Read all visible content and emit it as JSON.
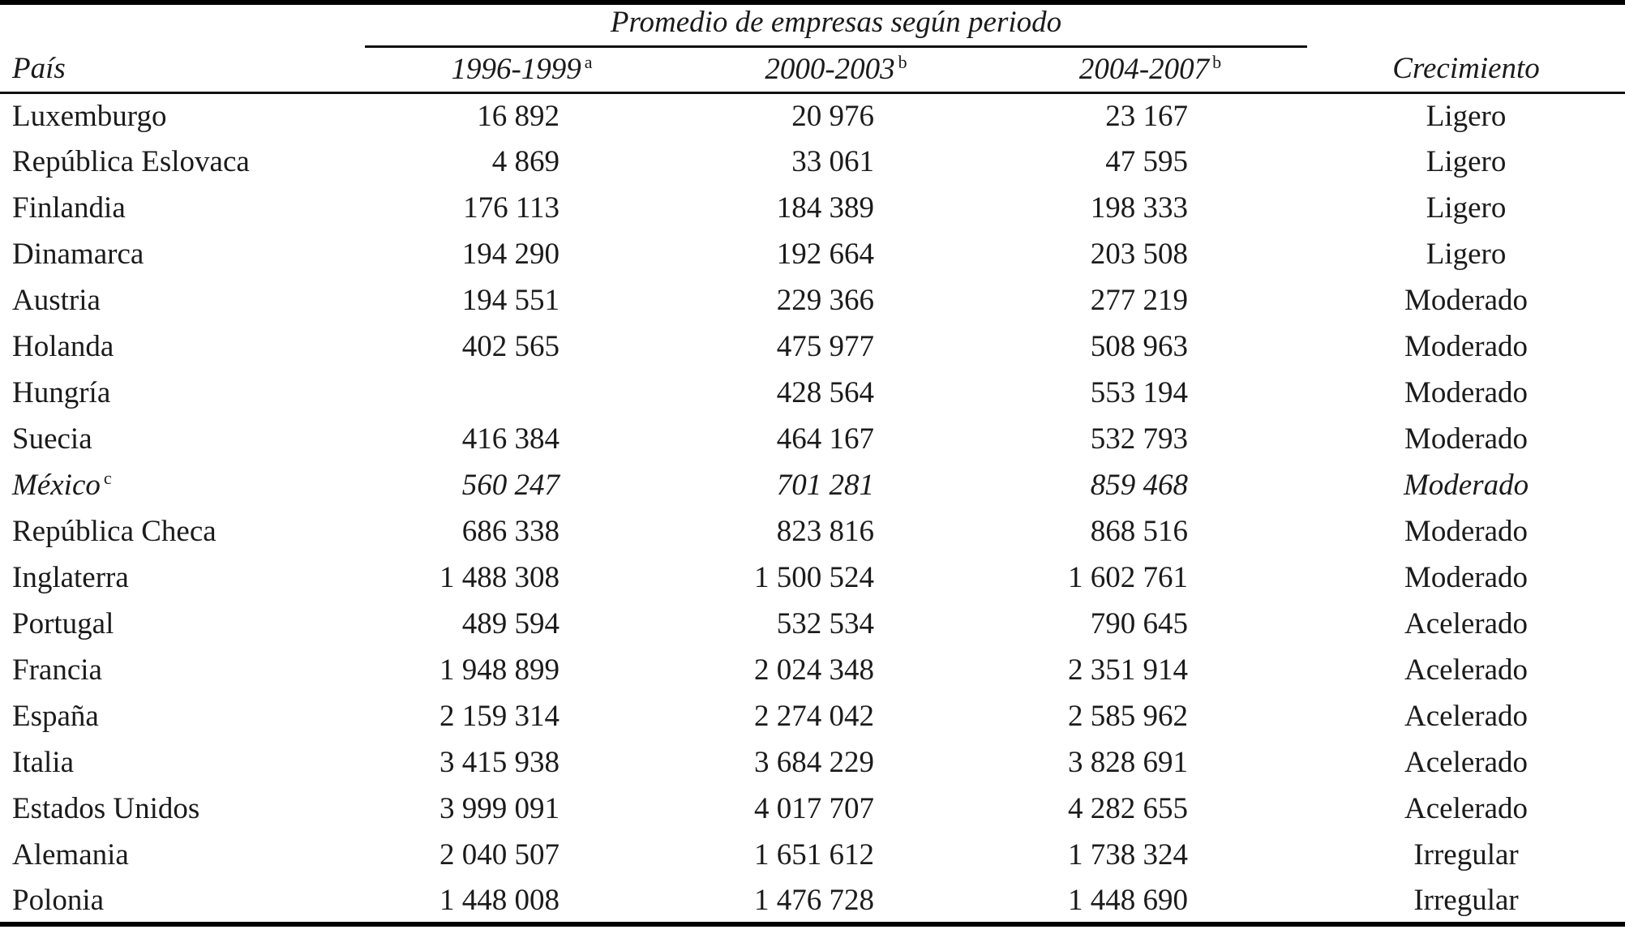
{
  "table": {
    "spanner": "Promedio de empresas según periodo",
    "headers": {
      "country": "País",
      "growth": "Crecimiento"
    },
    "periods": [
      {
        "label": "1996-1999",
        "note": "a"
      },
      {
        "label": "2000-2003",
        "note": "b"
      },
      {
        "label": "2004-2007",
        "note": "b"
      }
    ],
    "rows": [
      {
        "country": "Luxemburgo",
        "note": "",
        "p1": "16 892",
        "p2": "20 976",
        "p3": "23 167",
        "growth": "Ligero",
        "italic": false
      },
      {
        "country": "República Eslovaca",
        "note": "",
        "p1": "4 869",
        "p2": "33 061",
        "p3": "47 595",
        "growth": "Ligero",
        "italic": false
      },
      {
        "country": "Finlandia",
        "note": "",
        "p1": "176 113",
        "p2": "184 389",
        "p3": "198 333",
        "growth": "Ligero",
        "italic": false
      },
      {
        "country": "Dinamarca",
        "note": "",
        "p1": "194 290",
        "p2": "192 664",
        "p3": "203 508",
        "growth": "Ligero",
        "italic": false
      },
      {
        "country": "Austria",
        "note": "",
        "p1": "194 551",
        "p2": "229 366",
        "p3": "277 219",
        "growth": "Moderado",
        "italic": false
      },
      {
        "country": "Holanda",
        "note": "",
        "p1": "402 565",
        "p2": "475 977",
        "p3": "508 963",
        "growth": "Moderado",
        "italic": false
      },
      {
        "country": "Hungría",
        "note": "",
        "p1": "",
        "p2": "428 564",
        "p3": "553 194",
        "growth": "Moderado",
        "italic": false
      },
      {
        "country": "Suecia",
        "note": "",
        "p1": "416 384",
        "p2": "464 167",
        "p3": "532 793",
        "growth": "Moderado",
        "italic": false
      },
      {
        "country": "México",
        "note": "c",
        "p1": "560 247",
        "p2": "701 281",
        "p3": "859 468",
        "growth": "Moderado",
        "italic": true
      },
      {
        "country": "República Checa",
        "note": "",
        "p1": "686 338",
        "p2": "823 816",
        "p3": "868 516",
        "growth": "Moderado",
        "italic": false
      },
      {
        "country": "Inglaterra",
        "note": "",
        "p1": "1 488 308",
        "p2": "1 500 524",
        "p3": "1 602 761",
        "growth": "Moderado",
        "italic": false
      },
      {
        "country": "Portugal",
        "note": "",
        "p1": "489 594",
        "p2": "532 534",
        "p3": "790 645",
        "growth": "Acelerado",
        "italic": false
      },
      {
        "country": "Francia",
        "note": "",
        "p1": "1 948 899",
        "p2": "2 024 348",
        "p3": "2 351 914",
        "growth": "Acelerado",
        "italic": false
      },
      {
        "country": "España",
        "note": "",
        "p1": "2 159 314",
        "p2": "2 274 042",
        "p3": "2 585 962",
        "growth": "Acelerado",
        "italic": false
      },
      {
        "country": "Italia",
        "note": "",
        "p1": "3 415 938",
        "p2": "3 684 229",
        "p3": "3 828 691",
        "growth": "Acelerado",
        "italic": false
      },
      {
        "country": "Estados Unidos",
        "note": "",
        "p1": "3 999 091",
        "p2": "4 017 707",
        "p3": "4 282 655",
        "growth": "Acelerado",
        "italic": false
      },
      {
        "country": "Alemania",
        "note": "",
        "p1": "2 040 507",
        "p2": "1 651 612",
        "p3": "1 738 324",
        "growth": "Irregular",
        "italic": false
      },
      {
        "country": "Polonia",
        "note": "",
        "p1": "1 448 008",
        "p2": "1 476 728",
        "p3": "1 448 690",
        "growth": "Irregular",
        "italic": false
      }
    ]
  },
  "colors": {
    "text": "#1b1b1b",
    "rule_heavy": "#000000",
    "rule_light": "#101010",
    "background": "#ffffff"
  }
}
